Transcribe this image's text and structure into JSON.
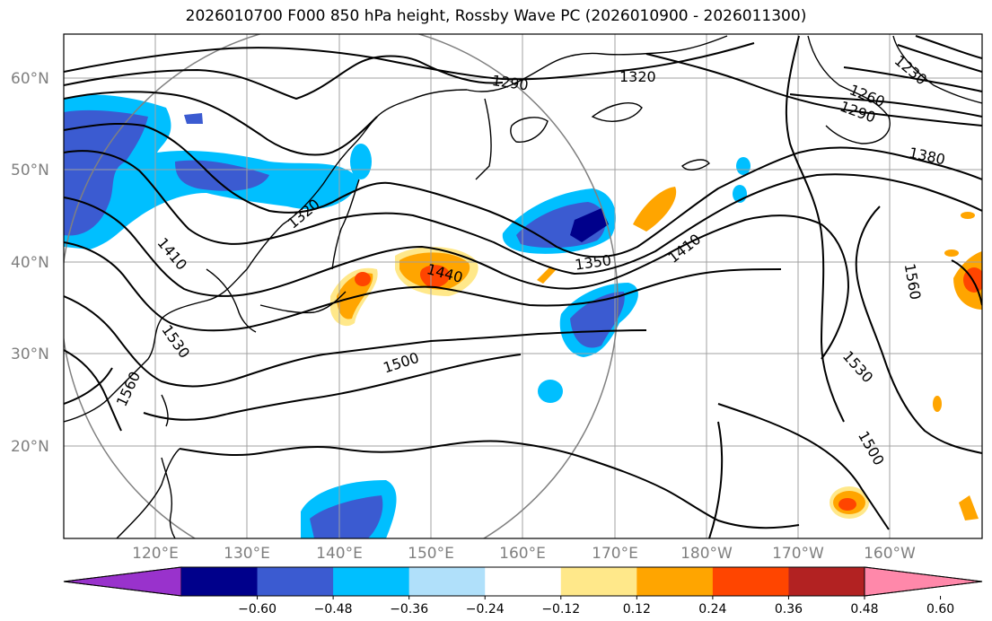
{
  "title": "2026010700 F000 850 hPa height, Rossby Wave PC (2026010900 - 2026011300)",
  "map": {
    "lon_labels": [
      "120°E",
      "130°E",
      "140°E",
      "150°E",
      "160°E",
      "170°E",
      "180°W",
      "170°W",
      "160°W"
    ],
    "lat_labels": [
      "60°N",
      "50°N",
      "40°N",
      "30°N",
      "20°N"
    ],
    "contour_labels": [
      "1290",
      "1320",
      "1380",
      "1410",
      "1350",
      "1440",
      "1320",
      "1410",
      "1500",
      "1530",
      "1500",
      "1560",
      "1560",
      "1530",
      "1290",
      "1260",
      "1230"
    ]
  },
  "colorbar": {
    "ticks": [
      "−0.60",
      "−0.48",
      "−0.36",
      "−0.24",
      "−0.12",
      "0.12",
      "0.24",
      "0.36",
      "0.48",
      "0.60"
    ],
    "colors": [
      "#9932cc",
      "#00008b",
      "#3b5bd1",
      "#00bfff",
      "#b0e0fa",
      "#ffffff",
      "#ffe88a",
      "#ffa500",
      "#ff4500",
      "#b22222",
      "#ff88aa"
    ]
  }
}
